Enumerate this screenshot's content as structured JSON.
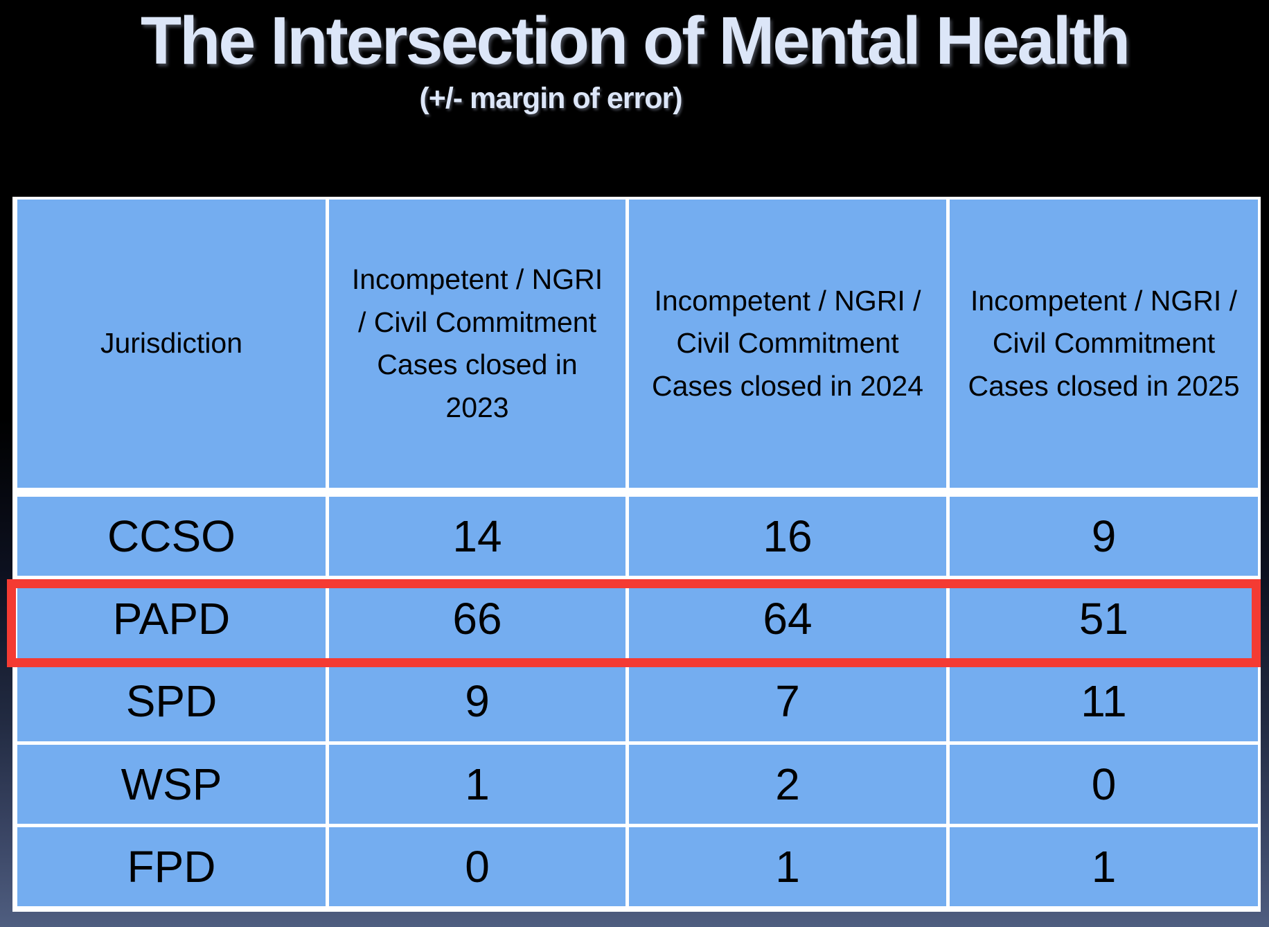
{
  "slide": {
    "title": "The Intersection of Mental Health",
    "subtitle": "(+/- margin of error)",
    "title_color": "#dce6f8",
    "background_top_color": "#000000",
    "background_bottom_color": "#4f5e80"
  },
  "table": {
    "header": {
      "jurisdiction": "Jurisdiction",
      "col_2023": "Incompetent / NGRI / Civil Commitment Cases closed in 2023",
      "col_2024": "Incompetent / NGRI / Civil Commitment Cases closed in 2024",
      "col_2025": "Incompetent / NGRI / Civil Commitment Cases closed in 2025"
    },
    "rows": [
      {
        "label": "CCSO",
        "v2023": "14",
        "v2024": "16",
        "v2025": "9"
      },
      {
        "label": "PAPD",
        "v2023": "66",
        "v2024": "64",
        "v2025": "51"
      },
      {
        "label": "SPD",
        "v2023": "9",
        "v2024": "7",
        "v2025": "11"
      },
      {
        "label": "WSP",
        "v2023": "1",
        "v2024": "2",
        "v2025": "0"
      },
      {
        "label": "FPD",
        "v2023": "0",
        "v2024": "1",
        "v2025": "1"
      }
    ],
    "cell_color": "#74adf0",
    "grid_line_color": "#ffffff",
    "text_color": "#000000",
    "highlight": {
      "row": "PAPD",
      "color": "#f43b33"
    }
  },
  "chart_data": {
    "type": "table",
    "title": "The Intersection of Mental Health",
    "subtitle": "(+/- margin of error)",
    "columns": [
      "Jurisdiction",
      "Incompetent / NGRI / Civil Commitment Cases closed in 2023",
      "Incompetent / NGRI / Civil Commitment Cases closed in 2024",
      "Incompetent / NGRI / Civil Commitment Cases closed in 2025"
    ],
    "rows": [
      [
        "CCSO",
        14,
        16,
        9
      ],
      [
        "PAPD",
        66,
        64,
        51
      ],
      [
        "SPD",
        9,
        7,
        11
      ],
      [
        "WSP",
        1,
        2,
        0
      ],
      [
        "FPD",
        0,
        1,
        1
      ]
    ],
    "highlighted_row": "PAPD"
  }
}
